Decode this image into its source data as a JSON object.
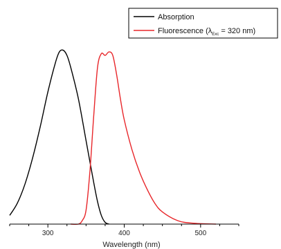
{
  "chart_data": {
    "type": "line",
    "title": "",
    "xlabel": "Wavelength (nm)",
    "ylabel": "",
    "xlim": [
      250,
      550
    ],
    "ylim": [
      0,
      1.05
    ],
    "x_ticks": [
      300,
      400,
      500
    ],
    "x_minor_step": 25,
    "grid": false,
    "legend_position": "top-right",
    "legend": {
      "absorption": "Absorption",
      "fluorescence_prefix": "Fluorescence (",
      "fluorescence_lambda": "λ",
      "fluorescence_sub": "Exc",
      "fluorescence_suffix": " = 320 nm)"
    },
    "series": [
      {
        "name": "Absorption",
        "color": "#000000",
        "x": [
          250,
          260,
          270,
          280,
          290,
          300,
          310,
          315,
          320,
          325,
          330,
          340,
          350,
          360,
          365,
          370,
          375,
          380
        ],
        "y": [
          0.05,
          0.12,
          0.23,
          0.38,
          0.56,
          0.76,
          0.93,
          0.99,
          1.0,
          0.97,
          0.9,
          0.72,
          0.48,
          0.24,
          0.13,
          0.05,
          0.01,
          0.0
        ]
      },
      {
        "name": "Fluorescence (λExc = 320 nm)",
        "color": "#e8262a",
        "x": [
          330,
          340,
          345,
          350,
          355,
          360,
          365,
          370,
          375,
          380,
          385,
          390,
          395,
          400,
          410,
          420,
          430,
          440,
          450,
          470,
          490,
          520
        ],
        "y": [
          0.0,
          0.0,
          0.02,
          0.08,
          0.3,
          0.62,
          0.9,
          0.98,
          0.97,
          0.99,
          0.97,
          0.86,
          0.72,
          0.6,
          0.43,
          0.3,
          0.2,
          0.12,
          0.07,
          0.02,
          0.005,
          0.0
        ]
      }
    ]
  }
}
